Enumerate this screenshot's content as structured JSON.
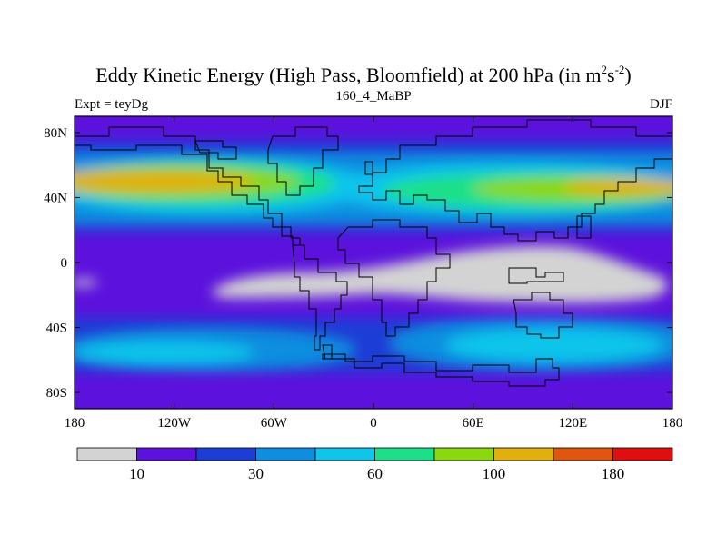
{
  "chart_data": {
    "type": "heatmap",
    "title": "Eddy Kinetic Energy (High Pass, Bloomfield) at 200 hPa (in m",
    "title_sup1": "2",
    "title_mid": "s",
    "title_sup2": "-2",
    "title_end": ")",
    "left_label": "Expt = teyDg",
    "center_label": "160_4_MaBP",
    "right_label": "DJF",
    "x_range": [
      -180,
      180
    ],
    "y_range": [
      -90,
      90
    ],
    "x_ticks": [
      {
        "value": -180,
        "label": "180"
      },
      {
        "value": -120,
        "label": "120W"
      },
      {
        "value": -60,
        "label": "60W"
      },
      {
        "value": 0,
        "label": "0"
      },
      {
        "value": 60,
        "label": "60E"
      },
      {
        "value": 120,
        "label": "120E"
      },
      {
        "value": 180,
        "label": "180"
      }
    ],
    "y_ticks": [
      {
        "value": 80,
        "label": "80N"
      },
      {
        "value": 40,
        "label": "40N"
      },
      {
        "value": 0,
        "label": "0"
      },
      {
        "value": -40,
        "label": "40S"
      },
      {
        "value": -80,
        "label": "80S"
      }
    ],
    "levels": [
      0,
      10,
      20,
      30,
      45,
      60,
      80,
      100,
      140,
      180,
      250
    ],
    "colors": [
      "#d3d3d3",
      "#5c12dc",
      "#1c3ed6",
      "#0f8ee0",
      "#0fc5eb",
      "#1ce088",
      "#8cd80f",
      "#e0b00f",
      "#e0560f",
      "#e00f0f"
    ],
    "colorbar_labels": [
      {
        "index": 1,
        "label": "10"
      },
      {
        "index": 3,
        "label": "30"
      },
      {
        "index": 5,
        "label": "60"
      },
      {
        "index": 7,
        "label": "100"
      },
      {
        "index": 9,
        "label": "180"
      }
    ]
  }
}
